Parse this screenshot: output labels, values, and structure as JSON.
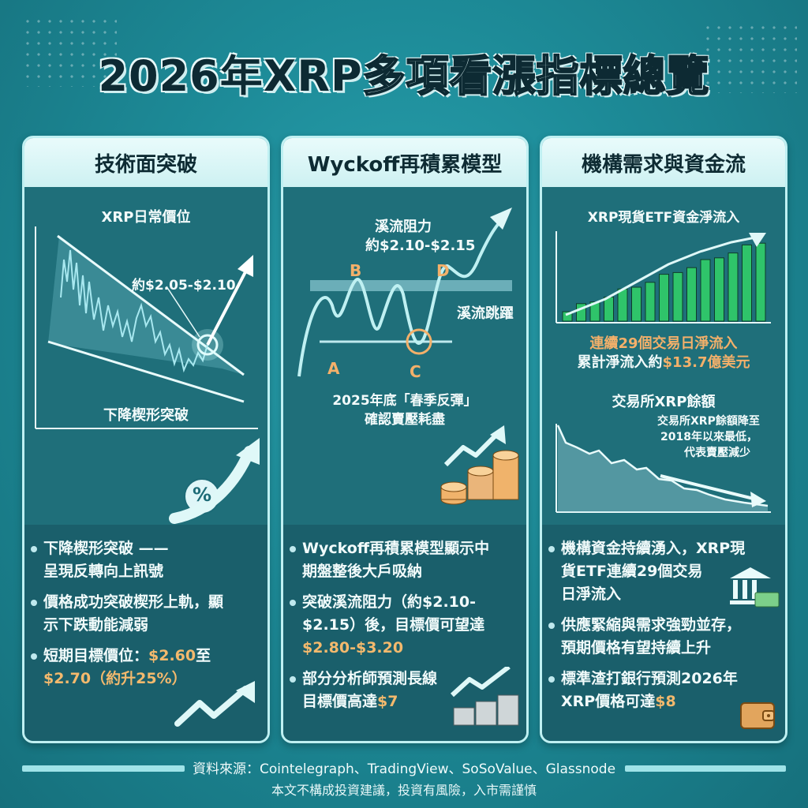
{
  "title_part1": "2026年XRP",
  "title_part2": "多項看漲指標總覽",
  "col1": {
    "header": "技術面突破",
    "chart_title": "XRP日常價位",
    "price_label": "約$2.05-$2.10",
    "pattern_label": "下降楔形突破",
    "percent_icon_text": "%",
    "items": [
      {
        "a": "下降楔形突破 ——",
        "b": "呈現反轉向上訊號"
      },
      {
        "a": "價格成功突破楔形上軌，顯",
        "b": "示下跌動能減弱"
      }
    ],
    "item3_a": "短期目標價位：",
    "item3_hl1": "$2.60",
    "item3_b": "至",
    "item3_hl2": "$2.70（約升25%）"
  },
  "col2": {
    "header": "Wyckoff再積累模型",
    "resist_label1": "溪流阻力",
    "resist_label2": "約$2.10-$2.15",
    "point_a": "A",
    "point_b": "B",
    "point_c": "C",
    "point_d": "D",
    "jump_label": "溪流跳躍",
    "note1": "2025年底「春季反彈」",
    "note2": "確認賣壓耗盡",
    "items": [
      {
        "a": "Wyckoff再積累模型顯示中",
        "b": "期盤整後大戶吸納"
      }
    ],
    "item2_a": "突破溪流阻力（約$2.10-",
    "item2_b": "$2.15）後，目標價可望達",
    "item2_hl": "$2.80-$3.20",
    "item3_a": "部分分析師預測長線",
    "item3_b": "目標價高達",
    "item3_hl": "$7"
  },
  "col3": {
    "header": "機構需求與資金流",
    "etf_title": "XRP現貨ETF資金淨流入",
    "etf_note1": "連續29個交易日淨流入",
    "etf_note2a": "累計淨流入約",
    "etf_note2b": "$13.7億美元",
    "ex_title": "交易所XRP餘額",
    "ex_note1": "交易所XRP餘額降至",
    "ex_note2": "2018年以來最低，",
    "ex_note3": "代表賣壓減少",
    "items": [
      {
        "a": "機構資金持續湧入，XRP現",
        "b": "貨ETF連續29個交易",
        "c": "日淨流入"
      },
      {
        "a": "供應緊縮與需求強勁並存，",
        "b": "預期價格有望持續上升",
        "c": ""
      }
    ],
    "item3_a": "標準渣打銀行預測2026年",
    "item3_b": "XRP價格可達",
    "item3_hl": "$8"
  },
  "sources": "資料來源：Cointelegraph、TradingView、SoSoValue、Glassnode",
  "disclaimer": "本文不構成投資建議，投資有風險，入市需謹慎",
  "colors": {
    "accent": "#f3b06a",
    "bar": "#2fc46a",
    "line": "#bff0f2"
  }
}
